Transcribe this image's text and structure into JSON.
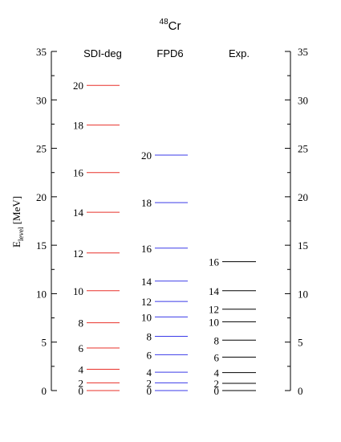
{
  "chart_data": {
    "type": "level-scheme",
    "title_sup": "48",
    "title": "Cr",
    "ylabel_main": "E",
    "ylabel_sub": "level",
    "ylabel_unit": " [MeV]",
    "ylim": [
      0,
      35
    ],
    "yticks": [
      0,
      5,
      10,
      15,
      20,
      25,
      30,
      35
    ],
    "ytick_labels": [
      "0",
      "5",
      "10",
      "15",
      "20",
      "25",
      "30",
      "35"
    ],
    "series": [
      {
        "name": "SDI-deg",
        "color": "#e8302a",
        "levels": [
          {
            "label": "0",
            "energy": 0.0
          },
          {
            "label": "2",
            "energy": 0.8
          },
          {
            "label": "4",
            "energy": 2.2
          },
          {
            "label": "6",
            "energy": 4.4
          },
          {
            "label": "8",
            "energy": 7.0
          },
          {
            "label": "10",
            "energy": 10.3
          },
          {
            "label": "12",
            "energy": 14.2
          },
          {
            "label": "14",
            "energy": 18.4
          },
          {
            "label": "16",
            "energy": 22.5
          },
          {
            "label": "18",
            "energy": 27.4
          },
          {
            "label": "20",
            "energy": 31.5
          }
        ]
      },
      {
        "name": "FPD6",
        "color": "#3b3be8",
        "levels": [
          {
            "label": "0",
            "energy": 0.0
          },
          {
            "label": "2",
            "energy": 0.8
          },
          {
            "label": "4",
            "energy": 1.9
          },
          {
            "label": "6",
            "energy": 3.7
          },
          {
            "label": "8",
            "energy": 5.6
          },
          {
            "label": "10",
            "energy": 7.6
          },
          {
            "label": "12",
            "energy": 9.2
          },
          {
            "label": "14",
            "energy": 11.3
          },
          {
            "label": "16",
            "energy": 14.7
          },
          {
            "label": "18",
            "energy": 19.4
          },
          {
            "label": "20",
            "energy": 24.3
          }
        ]
      },
      {
        "name": "Exp.",
        "color": "#000000",
        "levels": [
          {
            "label": "0",
            "energy": 0.0
          },
          {
            "label": "2",
            "energy": 0.75
          },
          {
            "label": "4",
            "energy": 1.86
          },
          {
            "label": "6",
            "energy": 3.45
          },
          {
            "label": "8",
            "energy": 5.2
          },
          {
            "label": "10",
            "energy": 7.1
          },
          {
            "label": "12",
            "energy": 8.4
          },
          {
            "label": "14",
            "energy": 10.3
          },
          {
            "label": "16",
            "energy": 13.3
          }
        ]
      }
    ]
  }
}
